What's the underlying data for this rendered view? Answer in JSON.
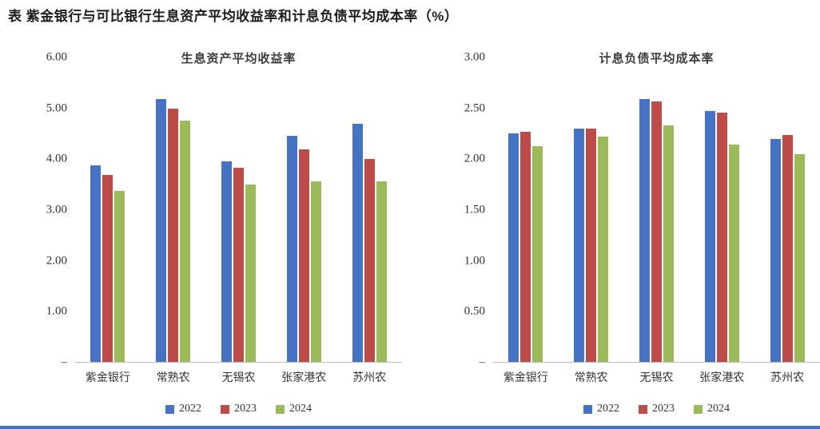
{
  "page_title": "表  紫金银行与可比银行生息资产平均收益率和计息负债平均成本率（%）",
  "series_colors": [
    "#4472C4",
    "#BE4B48",
    "#9BBB59"
  ],
  "footer_accent_color": "#4472C4",
  "chart_data": [
    {
      "type": "bar",
      "title": "生息资产平均收益率",
      "categories": [
        "紫金银行",
        "常熟农",
        "无锡农",
        "张家港农",
        "苏州农"
      ],
      "series": [
        {
          "name": "2022",
          "values": [
            3.87,
            5.18,
            3.95,
            4.46,
            4.7
          ]
        },
        {
          "name": "2023",
          "values": [
            3.68,
            5.0,
            3.82,
            4.19,
            4.0
          ]
        },
        {
          "name": "2024",
          "values": [
            3.37,
            4.76,
            3.5,
            3.56,
            3.56
          ]
        }
      ],
      "ylim": [
        0,
        6
      ],
      "ytick_step": 1,
      "ytick_labels": [
        "–",
        "1.00",
        "2.00",
        "3.00",
        "4.00",
        "5.00",
        "6.00"
      ],
      "grid": false,
      "legend_position": "bottom"
    },
    {
      "type": "bar",
      "title": "计息负债平均成本率",
      "categories": [
        "紫金银行",
        "常熟农",
        "无锡农",
        "张家港农",
        "苏州农"
      ],
      "series": [
        {
          "name": "2022",
          "values": [
            2.25,
            2.3,
            2.59,
            2.47,
            2.2
          ]
        },
        {
          "name": "2023",
          "values": [
            2.27,
            2.3,
            2.57,
            2.46,
            2.24
          ]
        },
        {
          "name": "2024",
          "values": [
            2.13,
            2.22,
            2.33,
            2.14,
            2.05
          ]
        }
      ],
      "ylim": [
        0,
        3
      ],
      "ytick_step": 0.5,
      "ytick_labels": [
        "–",
        "0.50",
        "1.00",
        "1.50",
        "2.00",
        "2.50",
        "3.00"
      ],
      "grid": false,
      "legend_position": "bottom"
    }
  ]
}
